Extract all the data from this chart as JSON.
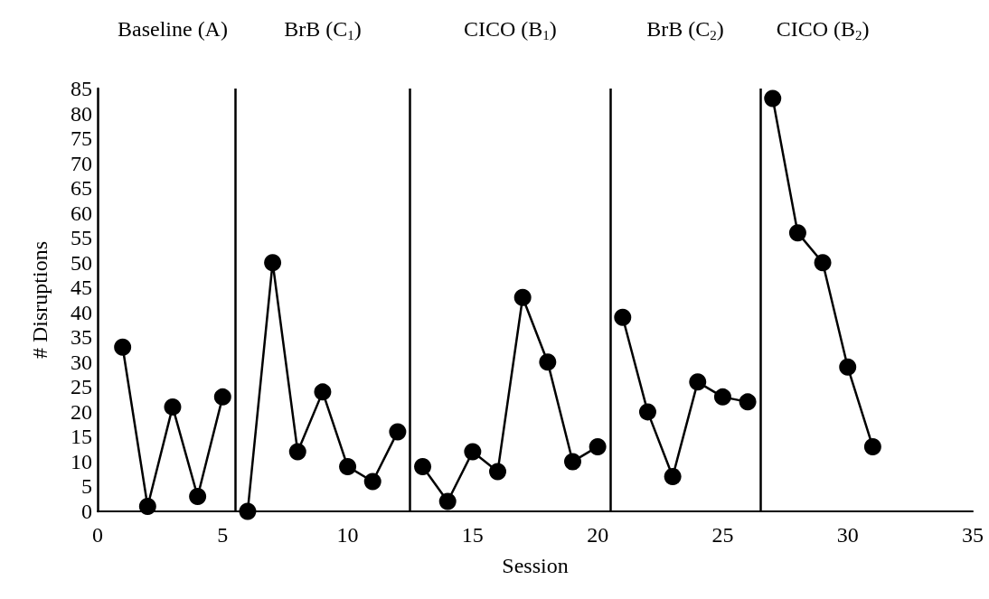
{
  "chart_data": {
    "type": "line",
    "xlabel": "Session",
    "ylabel": "# Disruptions",
    "xlim": [
      0,
      35
    ],
    "xticks": [
      0,
      5,
      10,
      15,
      20,
      25,
      30,
      35
    ],
    "ylim": [
      0,
      85
    ],
    "yticks": [
      0,
      5,
      10,
      15,
      20,
      25,
      30,
      35,
      40,
      45,
      50,
      55,
      60,
      65,
      70,
      75,
      80,
      85
    ],
    "annotations": [
      "Baseline (A)",
      "BrB (C$_{1}$)",
      "CICO (B$_{1}$)",
      "BrB (C$_{2}$)",
      "CICO (B$_{2}$)"
    ],
    "marker": "circle",
    "line_style": "solid",
    "grid": false,
    "series": [
      {
        "color": "#000000",
        "x": [
          1,
          2,
          3,
          4,
          5
        ],
        "values": [
          33,
          1,
          21,
          3,
          23
        ]
      },
      {
        "color": "#000000",
        "x": [
          6,
          7,
          8,
          9,
          10,
          11,
          12
        ],
        "values": [
          0,
          50,
          12,
          24,
          9,
          6,
          16
        ]
      },
      {
        "color": "#000000",
        "x": [
          13,
          14,
          15,
          16,
          17,
          18,
          19,
          20
        ],
        "values": [
          9,
          2,
          12,
          8,
          43,
          30,
          10,
          13
        ]
      },
      {
        "color": "#000000",
        "x": [
          21,
          22,
          23,
          24,
          25,
          26
        ],
        "values": [
          39,
          20,
          7,
          26,
          23,
          22
        ]
      },
      {
        "color": "#000000",
        "x": [
          27,
          28,
          29,
          30,
          31
        ],
        "values": [
          83,
          56,
          50,
          29,
          13
        ]
      }
    ],
    "ref_lines": [
      {
        "axis": "x",
        "value": 5.5,
        "color": "#000000",
        "line_style": "solid"
      },
      {
        "axis": "x",
        "value": 12.5,
        "color": "#000000",
        "line_style": "solid"
      },
      {
        "axis": "x",
        "value": 20.5,
        "color": "#000000",
        "line_style": "solid"
      },
      {
        "axis": "x",
        "value": 26.5,
        "color": "#000000",
        "line_style": "solid"
      }
    ]
  }
}
